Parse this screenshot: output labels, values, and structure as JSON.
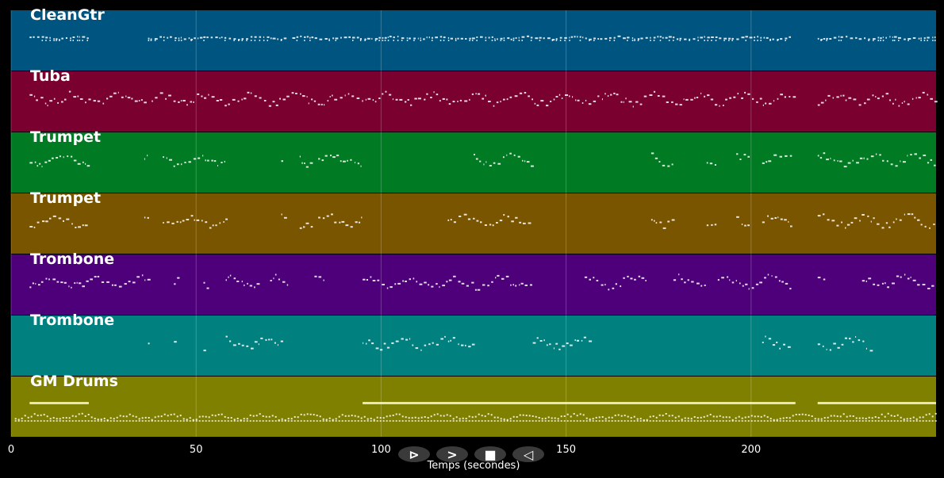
{
  "app": {
    "xlabel": "Temps (secondes)",
    "xlim": [
      0,
      250
    ],
    "ticks": [
      "0",
      "50",
      "100",
      "150",
      "200"
    ],
    "tick_values": [
      0,
      50,
      100,
      150,
      200
    ]
  },
  "tracks": [
    {
      "name": "CleanGtr",
      "color": "#005580",
      "activity": [
        [
          5,
          21
        ],
        [
          37,
          74
        ],
        [
          76,
          211
        ],
        [
          218,
          250
        ]
      ]
    },
    {
      "name": "Tuba",
      "color": "#7a0030",
      "activity": [
        [
          5,
          37
        ],
        [
          38,
          212
        ],
        [
          218,
          250
        ]
      ]
    },
    {
      "name": "Trumpet",
      "color": "#007a23",
      "activity": [
        [
          5,
          21
        ],
        [
          36,
          37
        ],
        [
          41,
          58
        ],
        [
          73,
          74
        ],
        [
          78,
          81
        ],
        [
          83,
          95
        ],
        [
          125,
          141
        ],
        [
          173,
          179
        ],
        [
          188,
          191
        ],
        [
          196,
          200
        ],
        [
          203,
          211
        ],
        [
          218,
          250
        ]
      ]
    },
    {
      "name": "Trumpet",
      "color": "#7a5500",
      "activity": [
        [
          5,
          21
        ],
        [
          36,
          37
        ],
        [
          41,
          58
        ],
        [
          73,
          74
        ],
        [
          78,
          81
        ],
        [
          83,
          95
        ],
        [
          118,
          141
        ],
        [
          173,
          179
        ],
        [
          188,
          191
        ],
        [
          196,
          200
        ],
        [
          203,
          211
        ],
        [
          218,
          250
        ]
      ]
    },
    {
      "name": "Trombone",
      "color": "#4d007a",
      "activity": [
        [
          5,
          38
        ],
        [
          44,
          45
        ],
        [
          52,
          53
        ],
        [
          58,
          67
        ],
        [
          70,
          75
        ],
        [
          82,
          85
        ],
        [
          95,
          126
        ],
        [
          126,
          141
        ],
        [
          155,
          172
        ],
        [
          179,
          188
        ],
        [
          191,
          211
        ],
        [
          218,
          220
        ],
        [
          230,
          250
        ]
      ]
    },
    {
      "name": "Trombone",
      "color": "#00807f",
      "activity": [
        [
          37,
          38
        ],
        [
          44,
          45
        ],
        [
          52,
          53
        ],
        [
          58,
          73
        ],
        [
          95,
          125
        ],
        [
          141,
          157
        ],
        [
          203,
          211
        ],
        [
          218,
          233
        ]
      ]
    },
    {
      "name": "GM Drums",
      "color": "#808000",
      "activity": [
        [
          1,
          250
        ]
      ],
      "sustain": [
        [
          5,
          21
        ],
        [
          95,
          212
        ],
        [
          218,
          250
        ]
      ]
    }
  ],
  "controls": [
    {
      "name": "play-button",
      "symbol": "⊳"
    },
    {
      "name": "forward-button",
      "symbol": ">"
    },
    {
      "name": "stop-button",
      "symbol": "■"
    },
    {
      "name": "rewind-button",
      "symbol": "◁"
    }
  ]
}
